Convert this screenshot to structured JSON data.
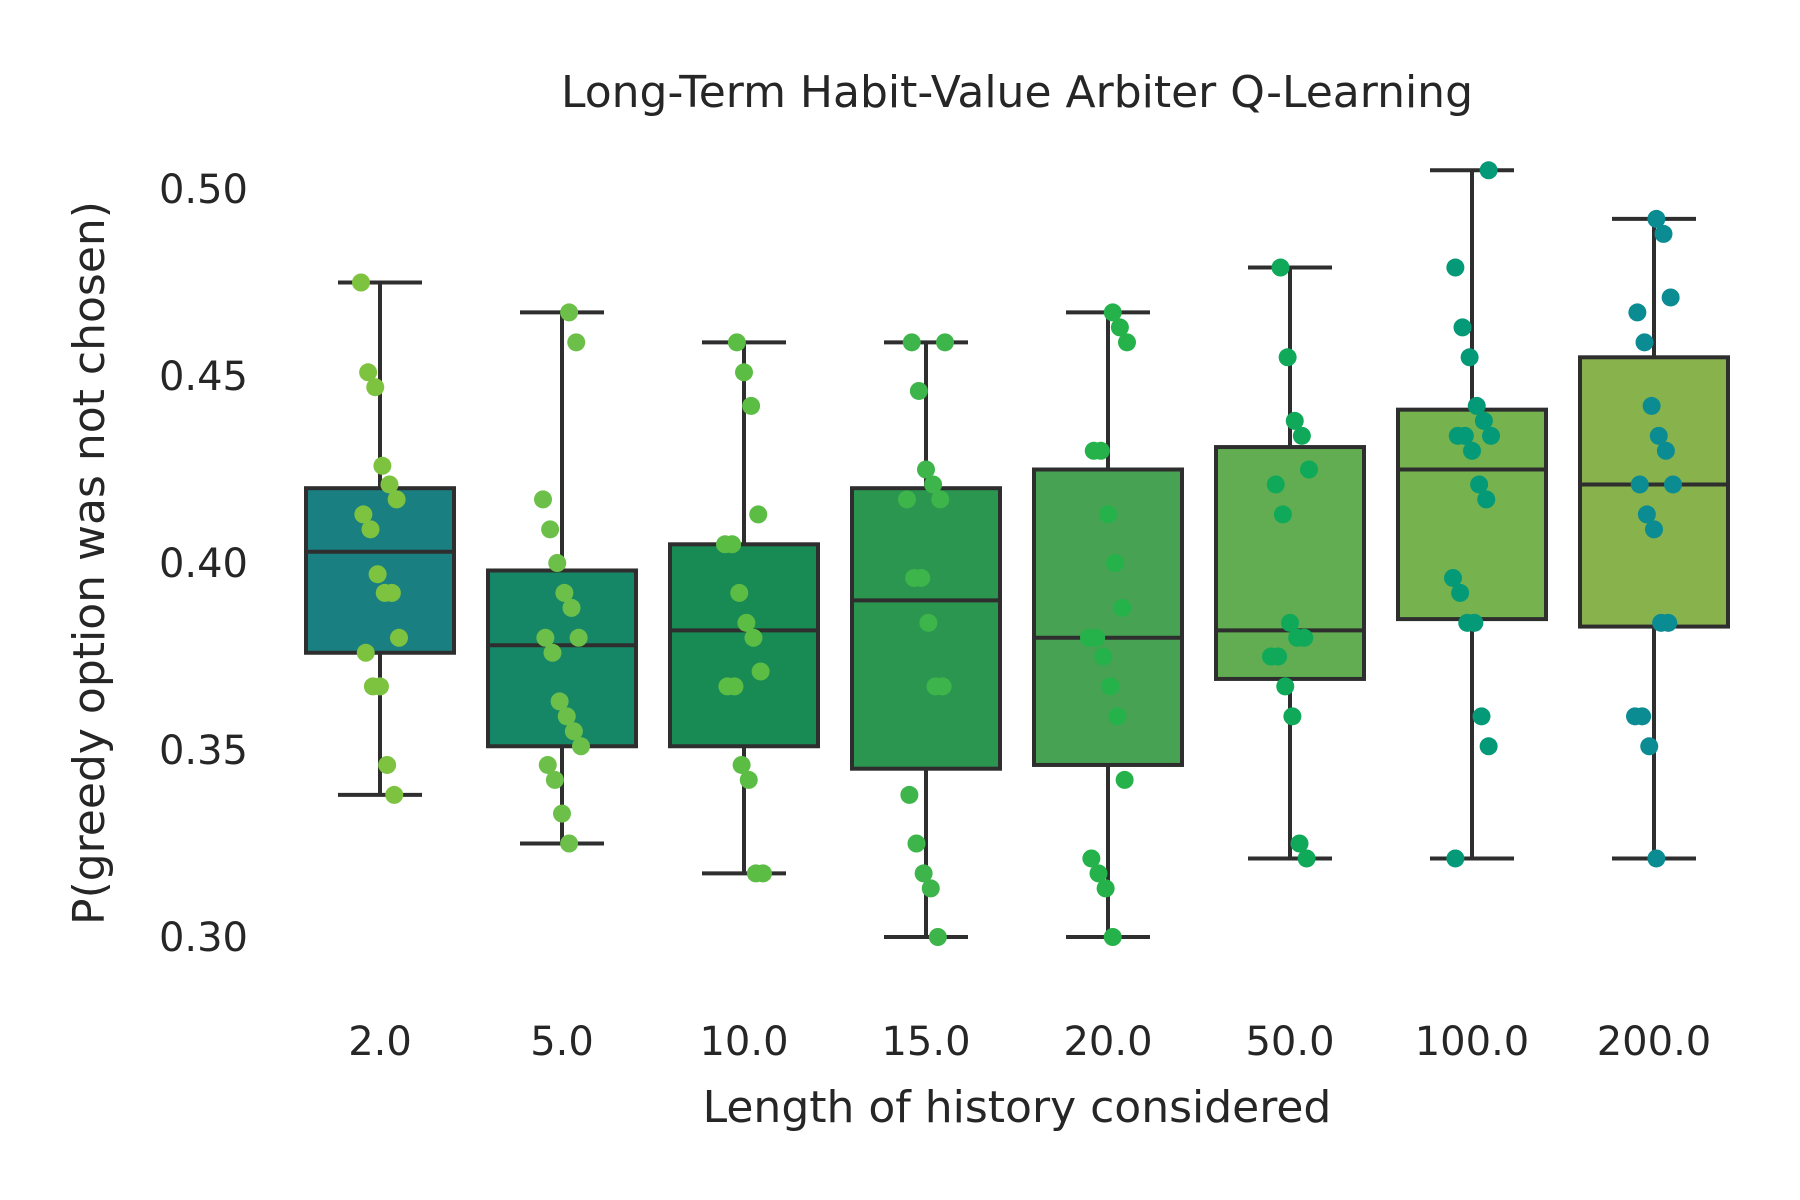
{
  "chart_data": {
    "type": "box",
    "title": "Long-Term Habit-Value Arbiter Q-Learning",
    "xlabel": "Length of history considered",
    "ylabel": "P(greedy option was not chosen)",
    "ylim": [
      0.285,
      0.51
    ],
    "yticks": [
      "0.30",
      "0.35",
      "0.40",
      "0.45",
      "0.50"
    ],
    "grid": false,
    "categories": [
      "2.0",
      "5.0",
      "10.0",
      "15.0",
      "20.0",
      "50.0",
      "100.0",
      "200.0"
    ],
    "boxes": [
      {
        "box_color": "#1a7f80",
        "point_color": "#7ec340",
        "whislo": 0.338,
        "q1": 0.376,
        "median": 0.403,
        "q3": 0.42,
        "whishi": 0.475,
        "points": [
          0.475,
          0.451,
          0.447,
          0.426,
          0.421,
          0.417,
          0.413,
          0.409,
          0.397,
          0.392,
          0.392,
          0.38,
          0.376,
          0.367,
          0.367,
          0.346,
          0.338
        ]
      },
      {
        "box_color": "#168766",
        "point_color": "#6cc04a",
        "whislo": 0.325,
        "q1": 0.351,
        "median": 0.378,
        "q3": 0.398,
        "whishi": 0.467,
        "points": [
          0.467,
          0.459,
          0.417,
          0.409,
          0.4,
          0.392,
          0.388,
          0.38,
          0.38,
          0.376,
          0.363,
          0.359,
          0.355,
          0.351,
          0.346,
          0.342,
          0.333,
          0.325
        ]
      },
      {
        "box_color": "#188a54",
        "point_color": "#5cbd44",
        "whislo": 0.317,
        "q1": 0.351,
        "median": 0.382,
        "q3": 0.405,
        "whishi": 0.459,
        "points": [
          0.459,
          0.451,
          0.442,
          0.413,
          0.405,
          0.405,
          0.392,
          0.384,
          0.38,
          0.371,
          0.367,
          0.367,
          0.346,
          0.342,
          0.317,
          0.317
        ]
      },
      {
        "box_color": "#2a9650",
        "point_color": "#3db54a",
        "whislo": 0.3,
        "q1": 0.345,
        "median": 0.39,
        "q3": 0.42,
        "whishi": 0.459,
        "points": [
          0.459,
          0.459,
          0.446,
          0.425,
          0.421,
          0.417,
          0.417,
          0.396,
          0.396,
          0.384,
          0.367,
          0.367,
          0.338,
          0.325,
          0.317,
          0.313,
          0.3
        ]
      },
      {
        "box_color": "#47a253",
        "point_color": "#25b24a",
        "whislo": 0.3,
        "q1": 0.346,
        "median": 0.38,
        "q3": 0.425,
        "whishi": 0.467,
        "points": [
          0.467,
          0.463,
          0.459,
          0.43,
          0.43,
          0.413,
          0.4,
          0.388,
          0.38,
          0.38,
          0.375,
          0.367,
          0.359,
          0.342,
          0.321,
          0.317,
          0.313,
          0.3
        ]
      },
      {
        "box_color": "#62ad52",
        "point_color": "#0fa959",
        "whislo": 0.321,
        "q1": 0.369,
        "median": 0.382,
        "q3": 0.431,
        "whishi": 0.479,
        "points": [
          0.479,
          0.455,
          0.438,
          0.434,
          0.425,
          0.421,
          0.413,
          0.384,
          0.38,
          0.38,
          0.375,
          0.375,
          0.367,
          0.359,
          0.325,
          0.321
        ]
      },
      {
        "box_color": "#76b24e",
        "point_color": "#049a77",
        "whislo": 0.321,
        "q1": 0.385,
        "median": 0.425,
        "q3": 0.441,
        "whishi": 0.505,
        "points": [
          0.505,
          0.479,
          0.463,
          0.455,
          0.442,
          0.438,
          0.434,
          0.434,
          0.434,
          0.43,
          0.421,
          0.417,
          0.396,
          0.392,
          0.384,
          0.384,
          0.359,
          0.351,
          0.321
        ]
      },
      {
        "box_color": "#88b24c",
        "point_color": "#0b8c92",
        "whislo": 0.321,
        "q1": 0.383,
        "median": 0.421,
        "q3": 0.455,
        "whishi": 0.492,
        "points": [
          0.492,
          0.488,
          0.471,
          0.467,
          0.459,
          0.442,
          0.434,
          0.43,
          0.421,
          0.421,
          0.413,
          0.409,
          0.384,
          0.384,
          0.359,
          0.359,
          0.351,
          0.321
        ]
      }
    ]
  }
}
